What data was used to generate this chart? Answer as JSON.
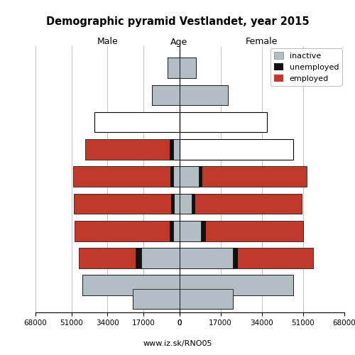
{
  "title": "Demographic pyramid Vestlandet, year 2015",
  "age_positions": [
    85,
    75,
    65,
    55,
    45,
    35,
    25,
    15,
    5,
    0
  ],
  "male": {
    "inactive": [
      5500,
      13000,
      0,
      3000,
      3000,
      2500,
      3000,
      18000,
      46000,
      22000
    ],
    "unemployed": [
      0,
      0,
      0,
      1500,
      1200,
      1500,
      1500,
      2500,
      0,
      0
    ],
    "employed": [
      0,
      0,
      0,
      40000,
      46000,
      46000,
      45000,
      27000,
      0,
      0
    ],
    "total_outline": [
      0,
      0,
      40000,
      0,
      0,
      0,
      0,
      0,
      0,
      0
    ]
  },
  "female": {
    "inactive": [
      7000,
      20000,
      0,
      0,
      8000,
      5000,
      9000,
      22000,
      47000,
      22000
    ],
    "unemployed": [
      0,
      0,
      0,
      0,
      1500,
      1500,
      2000,
      2000,
      0,
      0
    ],
    "employed": [
      0,
      0,
      0,
      0,
      43000,
      44000,
      40000,
      31000,
      0,
      0
    ],
    "total_outline": [
      0,
      0,
      36000,
      47000,
      0,
      0,
      0,
      0,
      0,
      0
    ]
  },
  "colors": {
    "inactive": "#b2bec3",
    "unemployed": "#111111",
    "employed": "#c0392b"
  },
  "xlim": 68000,
  "bar_height": 7.5
}
